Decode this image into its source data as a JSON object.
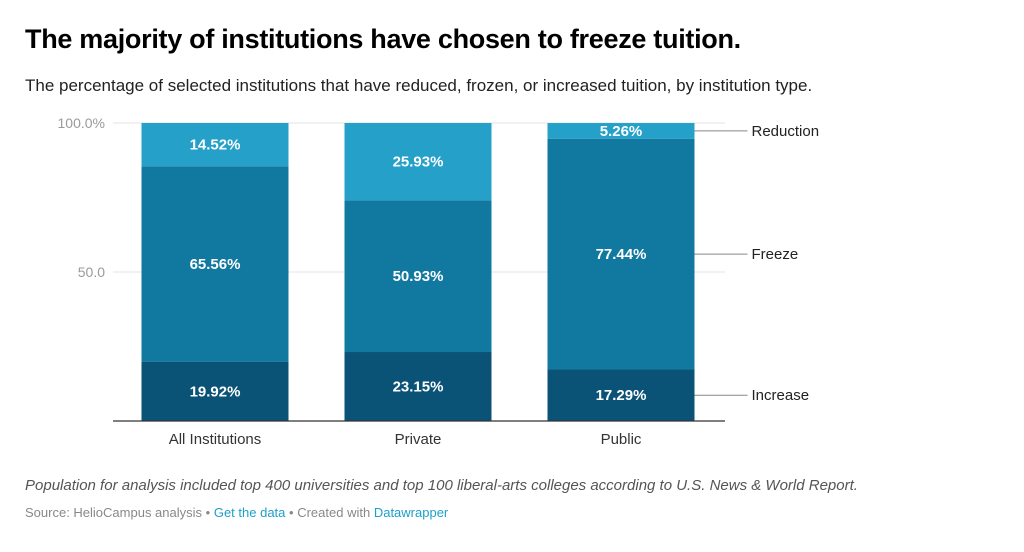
{
  "chart_data": {
    "type": "bar",
    "stacked": true,
    "orientation": "vertical",
    "title": "The majority of institutions have chosen to freeze tuition.",
    "subtitle": "The percentage of selected institutions that have reduced, frozen, or increased tuition, by institution type.",
    "xlabel": "",
    "ylabel": "",
    "ylim": [
      0,
      100
    ],
    "yticks": [
      {
        "value": 100,
        "label": "100.0%"
      },
      {
        "value": 50,
        "label": "50.0"
      }
    ],
    "grid": true,
    "legend": "direct-labels-right",
    "categories": [
      "All Institutions",
      "Private",
      "Public"
    ],
    "series": [
      {
        "name": "Increase",
        "color": "#0b5277",
        "values": [
          19.92,
          23.15,
          17.29
        ],
        "labels": [
          "19.92%",
          "23.15%",
          "17.29%"
        ]
      },
      {
        "name": "Freeze",
        "color": "#11789f",
        "values": [
          65.56,
          50.93,
          77.44
        ],
        "labels": [
          "65.56%",
          "50.93%",
          "77.44%"
        ]
      },
      {
        "name": "Reduction",
        "color": "#24a0c9",
        "values": [
          14.52,
          25.93,
          5.26
        ],
        "labels": [
          "14.52%",
          "25.93%",
          "5.26%"
        ]
      }
    ]
  },
  "notes": "Population for analysis included top 400 universities and top 100 liberal-arts colleges according to U.S. News & World Report.",
  "footer": {
    "source": "Source: HelioCampus analysis",
    "separator": "•",
    "get_data": "Get the data",
    "created_with": "Created with",
    "tool": "Datawrapper"
  }
}
